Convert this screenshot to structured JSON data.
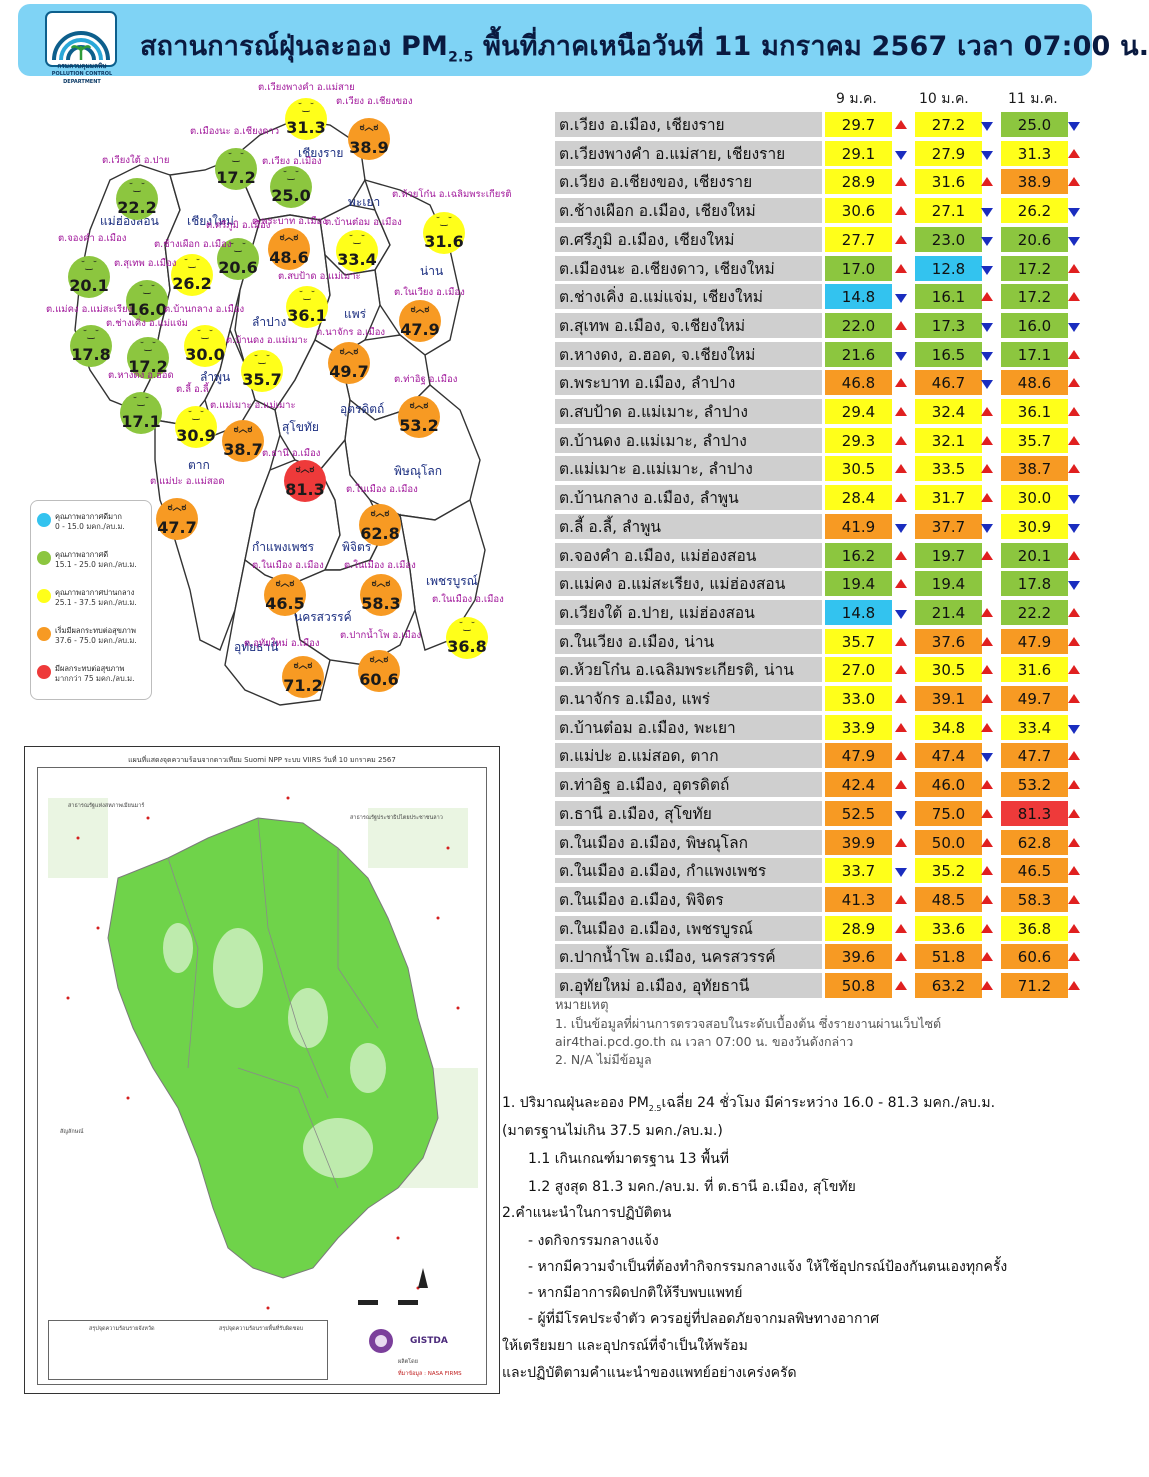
{
  "header": {
    "title_pre": "สถานการณ์ฝุ่นละออง PM",
    "title_sub": "2.5",
    "title_post": "พื้นที่ภาคเหนือวันที่ 11 มกราคม 2567 เวลา 07:00 น.",
    "logo_text": "กรมควบคุมมลพิษ",
    "logo_text_en": "POLLUTION CONTROL DEPARTMENT"
  },
  "colors": {
    "very_good": "#33c3ef",
    "good": "#8cc63f",
    "moderate": "#ffff1a",
    "unhealthy_sensitive": "#f79a23",
    "unhealthy": "#ee3a3a",
    "header_bg": "#7fd3f5",
    "arrow_up": "#e02020",
    "arrow_down": "#1a2dbf"
  },
  "legend": [
    {
      "title": "คุณภาพอากาศดีมาก",
      "range": "0 - 15.0 มคก./ลบ.ม.",
      "level": "vg"
    },
    {
      "title": "คุณภาพอากาศดี",
      "range": "15.1 - 25.0 มคก./ลบ.ม.",
      "level": "good"
    },
    {
      "title": "คุณภาพอากาศปานกลาง",
      "range": "25.1 - 37.5 มคก./ลบ.ม.",
      "level": "mod"
    },
    {
      "title": "เริ่มมีผลกระทบต่อสุขภาพ",
      "range": "37.6 - 75.0 มคก./ลบ.ม.",
      "level": "usg"
    },
    {
      "title": "มีผลกระทบต่อสุขภาพ",
      "range": "มากกว่า 75 มคก./ลบ.ม.",
      "level": "bad"
    }
  ],
  "map": {
    "provinces": [
      "เชียงราย",
      "พะเยา",
      "แม่ฮ่องสอน",
      "เชียงใหม่",
      "น่าน",
      "ลำปาง",
      "แพร่",
      "ลำพูน",
      "อุตรดิตถ์",
      "สุโขทัย",
      "ตาก",
      "พิษณุโลก",
      "กำแพงเพชร",
      "พิจิตร",
      "เพชรบูรณ์",
      "นครสวรรค์",
      "อุทัยธานี"
    ],
    "stations": [
      {
        "label": "ต.เวียงพางคำ อ.แม่สาย",
        "value": "31.3",
        "level": "mod"
      },
      {
        "label": "ต.เวียง อ.เชียงของ",
        "value": "38.9",
        "level": "usg"
      },
      {
        "label": "ต.เมืองนะ อ.เชียงดาว",
        "value": "17.2",
        "level": "good"
      },
      {
        "label": "ต.เวียงใต้ อ.ปาย",
        "value": "22.2",
        "level": "good"
      },
      {
        "label": "ต.เวียง อ.เมือง",
        "value": "25.0",
        "level": "good"
      },
      {
        "label": "ต.ห้วยโก๋น อ.เฉลิมพระเกียรติ",
        "value": "31.6",
        "level": "mod"
      },
      {
        "label": "ต.พระบาท อ.เมือง",
        "value": "48.6",
        "level": "usg"
      },
      {
        "label": "ต.บ้านต๋อม อ.เมือง",
        "value": "33.4",
        "level": "mod"
      },
      {
        "label": "ต.ศรีภูมิ อ.เมือง",
        "value": "20.6",
        "level": "good"
      },
      {
        "label": "ต.ช้างเผือก อ.เมือง",
        "value": "26.2",
        "level": "mod"
      },
      {
        "label": "ต.จองคำ อ.เมือง",
        "value": "20.1",
        "level": "good"
      },
      {
        "label": "ต.สุเทพ อ.เมือง",
        "value": "16.0",
        "level": "good"
      },
      {
        "label": "ต.สบป้าด อ.แม่เมาะ",
        "value": "36.1",
        "level": "mod"
      },
      {
        "label": "ต.ในเวียง อ.เมือง",
        "value": "47.9",
        "level": "usg"
      },
      {
        "label": "ต.แม่คง อ.แม่สะเรียง",
        "value": "17.8",
        "level": "good"
      },
      {
        "label": "ต.ช่างเคิ่ง อ.แม่แจ่ม",
        "value": "17.2",
        "level": "good"
      },
      {
        "label": "ต.บ้านกลาง อ.เมือง",
        "value": "30.0",
        "level": "mod"
      },
      {
        "label": "ต.นาจักร อ.เมือง",
        "value": "49.7",
        "level": "usg"
      },
      {
        "label": "ต.บ้านดง อ.แม่เมาะ",
        "value": "35.7",
        "level": "mod"
      },
      {
        "label": "ต.หางดง อ.ฮอด",
        "value": "17.1",
        "level": "good"
      },
      {
        "label": "ต.ลี้ อ.ลี้",
        "value": "30.9",
        "level": "mod"
      },
      {
        "label": "ต.แม่เมาะ อ.แม่เมาะ",
        "value": "38.7",
        "level": "usg"
      },
      {
        "label": "ต.ท่าอิฐ อ.เมือง",
        "value": "53.2",
        "level": "usg"
      },
      {
        "label": "ต.ธานี อ.เมือง",
        "value": "81.3",
        "level": "bad"
      },
      {
        "label": "ต.แม่ปะ อ.แม่สอด",
        "value": "47.7",
        "level": "usg"
      },
      {
        "label": "ต.ในเมือง อ.เมือง",
        "value": "62.8",
        "level": "usg"
      },
      {
        "label": "ต.ในเมือง อ.เมือง",
        "value": "46.5",
        "level": "usg"
      },
      {
        "label": "ต.ในเมือง อ.เมือง",
        "value": "58.3",
        "level": "usg"
      },
      {
        "label": "ต.ในเมือง อ.เมือง",
        "value": "36.8",
        "level": "mod"
      },
      {
        "label": "ต.อุทัยใหม่ อ.เมือง",
        "value": "71.2",
        "level": "usg"
      },
      {
        "label": "ต.ปากน้ำโพ อ.เมือง",
        "value": "60.6",
        "level": "usg"
      }
    ]
  },
  "satellite": {
    "title": "แผนที่แสดงจุดความร้อนจากดาวเทียม Suomi NPP ระบบ VIIRS วันที่ 10 มกราคม 2567",
    "left_country": "สาธารณรัฐแห่งสหภาพเมียนมาร์",
    "right_country": "สาธารณรัฐประชาธิปไตยประชาชนลาว",
    "legend_title": "สัญลักษณ์",
    "summary_left": "สรุปจุดความร้อนรายจังหวัด",
    "summary_right": "สรุปจุดความร้อนรายพื้นที่รับผิดชอบ",
    "source": "ที่มาข้อมูล : NASA FIRMS",
    "gistda": "GISTDA",
    "producer": "ผลิตโดย"
  },
  "table": {
    "days": [
      "9 ม.ค.",
      "10 ม.ค.",
      "11 ม.ค."
    ],
    "rows": [
      {
        "name": "ต.เวียง อ.เมือง, เชียงราย",
        "v": [
          "29.7",
          "27.2",
          "25.0"
        ],
        "l": [
          "mod",
          "mod",
          "good"
        ],
        "t": [
          "up",
          "down",
          "down"
        ]
      },
      {
        "name": "ต.เวียงพางคำ อ.แม่สาย, เชียงราย",
        "v": [
          "29.1",
          "27.9",
          "31.3"
        ],
        "l": [
          "mod",
          "mod",
          "mod"
        ],
        "t": [
          "down",
          "down",
          "up"
        ]
      },
      {
        "name": "ต.เวียง อ.เชียงของ, เชียงราย",
        "v": [
          "28.9",
          "31.6",
          "38.9"
        ],
        "l": [
          "mod",
          "mod",
          "usg"
        ],
        "t": [
          "up",
          "up",
          "up"
        ]
      },
      {
        "name": "ต.ช้างเผือก อ.เมือง, เชียงใหม่",
        "v": [
          "30.6",
          "27.1",
          "26.2"
        ],
        "l": [
          "mod",
          "mod",
          "mod"
        ],
        "t": [
          "up",
          "down",
          "down"
        ]
      },
      {
        "name": "ต.ศรีภูมิ อ.เมือง, เชียงใหม่",
        "v": [
          "27.7",
          "23.0",
          "20.6"
        ],
        "l": [
          "mod",
          "good",
          "good"
        ],
        "t": [
          "up",
          "down",
          "down"
        ]
      },
      {
        "name": "ต.เมืองนะ อ.เชียงดาว, เชียงใหม่",
        "v": [
          "17.0",
          "12.8",
          "17.2"
        ],
        "l": [
          "good",
          "vg",
          "good"
        ],
        "t": [
          "up",
          "down",
          "up"
        ]
      },
      {
        "name": "ต.ช่างเคิ่ง อ.แม่แจ่ม, เชียงใหม่",
        "v": [
          "14.8",
          "16.1",
          "17.2"
        ],
        "l": [
          "vg",
          "good",
          "good"
        ],
        "t": [
          "down",
          "up",
          "up"
        ]
      },
      {
        "name": "ต.สุเทพ  อ.เมือง, จ.เชียงใหม่",
        "v": [
          "22.0",
          "17.3",
          "16.0"
        ],
        "l": [
          "good",
          "good",
          "good"
        ],
        "t": [
          "up",
          "down",
          "down"
        ]
      },
      {
        "name": "ต.หางดง, อ.ฮอด, จ.เชียงใหม่",
        "v": [
          "21.6",
          "16.5",
          "17.1"
        ],
        "l": [
          "good",
          "good",
          "good"
        ],
        "t": [
          "down",
          "down",
          "up"
        ]
      },
      {
        "name": "ต.พระบาท อ.เมือง, ลำปาง",
        "v": [
          "46.8",
          "46.7",
          "48.6"
        ],
        "l": [
          "usg",
          "usg",
          "usg"
        ],
        "t": [
          "up",
          "down",
          "up"
        ]
      },
      {
        "name": "ต.สบป้าด อ.แม่เมาะ, ลำปาง",
        "v": [
          "29.4",
          "32.4",
          "36.1"
        ],
        "l": [
          "mod",
          "mod",
          "mod"
        ],
        "t": [
          "up",
          "up",
          "up"
        ]
      },
      {
        "name": "ต.บ้านดง อ.แม่เมาะ, ลำปาง",
        "v": [
          "29.3",
          "32.1",
          "35.7"
        ],
        "l": [
          "mod",
          "mod",
          "mod"
        ],
        "t": [
          "up",
          "up",
          "up"
        ]
      },
      {
        "name": "ต.แม่เมาะ อ.แม่เมาะ, ลำปาง",
        "v": [
          "30.5",
          "33.5",
          "38.7"
        ],
        "l": [
          "mod",
          "mod",
          "usg"
        ],
        "t": [
          "up",
          "up",
          "up"
        ]
      },
      {
        "name": "ต.บ้านกลาง อ.เมือง, ลำพูน",
        "v": [
          "28.4",
          "31.7",
          "30.0"
        ],
        "l": [
          "mod",
          "mod",
          "mod"
        ],
        "t": [
          "up",
          "up",
          "down"
        ]
      },
      {
        "name": "ต.ลี้ อ.ลี้, ลำพูน",
        "v": [
          "41.9",
          "37.7",
          "30.9"
        ],
        "l": [
          "usg",
          "usg",
          "mod"
        ],
        "t": [
          "down",
          "down",
          "down"
        ]
      },
      {
        "name": "ต.จองคำ อ.เมือง, แม่ฮ่องสอน",
        "v": [
          "16.2",
          "19.7",
          "20.1"
        ],
        "l": [
          "good",
          "good",
          "good"
        ],
        "t": [
          "up",
          "up",
          "up"
        ]
      },
      {
        "name": "ต.แม่คง อ.แม่สะเรียง, แม่ฮ่องสอน",
        "v": [
          "19.4",
          "19.4",
          "17.8"
        ],
        "l": [
          "good",
          "good",
          "good"
        ],
        "t": [
          "up",
          "",
          "down"
        ]
      },
      {
        "name": "ต.เวียงใต้ อ.ปาย, แม่ฮ่องสอน",
        "v": [
          "14.8",
          "21.4",
          "22.2"
        ],
        "l": [
          "vg",
          "good",
          "good"
        ],
        "t": [
          "down",
          "up",
          "up"
        ]
      },
      {
        "name": "ต.ในเวียง อ.เมือง, น่าน",
        "v": [
          "35.7",
          "37.6",
          "47.9"
        ],
        "l": [
          "mod",
          "usg",
          "usg"
        ],
        "t": [
          "up",
          "up",
          "up"
        ]
      },
      {
        "name": "ต.ห้วยโก๋น อ.เฉลิมพระเกียรติ, น่าน",
        "v": [
          "27.0",
          "30.5",
          "31.6"
        ],
        "l": [
          "mod",
          "mod",
          "mod"
        ],
        "t": [
          "up",
          "up",
          "up"
        ]
      },
      {
        "name": "ต.นาจักร อ.เมือง, แพร่",
        "v": [
          "33.0",
          "39.1",
          "49.7"
        ],
        "l": [
          "mod",
          "usg",
          "usg"
        ],
        "t": [
          "up",
          "up",
          "up"
        ]
      },
      {
        "name": "ต.บ้านต๋อม อ.เมือง, พะเยา",
        "v": [
          "33.9",
          "34.8",
          "33.4"
        ],
        "l": [
          "mod",
          "mod",
          "mod"
        ],
        "t": [
          "up",
          "up",
          "down"
        ]
      },
      {
        "name": "ต.แม่ปะ อ.แม่สอด, ตาก",
        "v": [
          "47.9",
          "47.4",
          "47.7"
        ],
        "l": [
          "usg",
          "usg",
          "usg"
        ],
        "t": [
          "up",
          "down",
          "up"
        ]
      },
      {
        "name": "ต.ท่าอิฐ อ.เมือง, อุตรดิตถ์",
        "v": [
          "42.4",
          "46.0",
          "53.2"
        ],
        "l": [
          "usg",
          "usg",
          "usg"
        ],
        "t": [
          "up",
          "up",
          "up"
        ]
      },
      {
        "name": "ต.ธานี อ.เมือง, สุโขทัย",
        "v": [
          "52.5",
          "75.0",
          "81.3"
        ],
        "l": [
          "usg",
          "usg",
          "bad"
        ],
        "t": [
          "down",
          "up",
          "up"
        ]
      },
      {
        "name": "ต.ในเมือง อ.เมือง, พิษณุโลก",
        "v": [
          "39.9",
          "50.0",
          "62.8"
        ],
        "l": [
          "usg",
          "usg",
          "usg"
        ],
        "t": [
          "up",
          "up",
          "up"
        ]
      },
      {
        "name": "ต.ในเมือง อ.เมือง, กำแพงเพชร",
        "v": [
          "33.7",
          "35.2",
          "46.5"
        ],
        "l": [
          "mod",
          "mod",
          "usg"
        ],
        "t": [
          "down",
          "up",
          "up"
        ]
      },
      {
        "name": "ต.ในเมือง อ.เมือง, พิจิตร",
        "v": [
          "41.3",
          "48.5",
          "58.3"
        ],
        "l": [
          "usg",
          "usg",
          "usg"
        ],
        "t": [
          "up",
          "up",
          "up"
        ]
      },
      {
        "name": "ต.ในเมือง อ.เมือง, เพชรบูรณ์",
        "v": [
          "28.9",
          "33.6",
          "36.8"
        ],
        "l": [
          "mod",
          "mod",
          "mod"
        ],
        "t": [
          "up",
          "up",
          "up"
        ]
      },
      {
        "name": "ต.ปากน้ำโพ อ.เมือง, นครสวรรค์",
        "v": [
          "39.6",
          "51.8",
          "60.6"
        ],
        "l": [
          "usg",
          "usg",
          "usg"
        ],
        "t": [
          "up",
          "up",
          "up"
        ]
      },
      {
        "name": "ต.อุทัยใหม่ อ.เมือง, อุทัยธานี",
        "v": [
          "50.8",
          "63.2",
          "71.2"
        ],
        "l": [
          "usg",
          "usg",
          "usg"
        ],
        "t": [
          "up",
          "up",
          "up"
        ]
      }
    ]
  },
  "notes": {
    "title": "หมายเหตุ",
    "line1": "1.  เป็นข้อมูลที่ผ่านการตรวจสอบในระดับเบื้องต้น  ซึ่งรายงานผ่านเว็บไซต์",
    "line2": "air4thai.pcd.go.th  ณ  เวลา 07:00  น.  ของวันดังกล่าว",
    "line3": "2.  N/A  ไม่มีข้อมูล"
  },
  "summary": {
    "l1_pre": "1. ปริมาณฝุ่นละออง PM",
    "l1_sub": "2.5",
    "l1_post": "เฉลี่ย 24 ชั่วโมง มีค่าระหว่าง 16.0 - 81.3 มคก./ลบ.ม.",
    "l2": "(มาตรฐานไม่เกิน 37.5 มคก./ลบ.ม.)",
    "l3": "1.1 เกินเกณฑ์มาตรฐาน 13 พื้นที่",
    "l4": "1.2 สูงสุด 81.3  มคก./ลบ.ม. ที่ ต.ธานี อ.เมือง, สุโขทัย",
    "l5": "2.คำแนะนำในการปฏิบัติตน",
    "l6": "-  งดกิจกรรมกลางแจ้ง",
    "l7": "-  หากมีความจำเป็นที่ต้องทำกิจกรรมกลางแจ้ง ให้ใช้อุปกรณ์ป้องกันตนเองทุกครั้ง",
    "l8": "-  หากมีอาการผิดปกติให้รีบพบแพทย์",
    "l9": "-  ผู้ที่มีโรคประจำตัว ควรอยู่ที่ปลอดภัยจากมลพิษทางอากาศ",
    "l10": "ให้เตรียมยา  และอุปกรณ์ที่จำเป็นให้พร้อม",
    "l11": "และปฏิบัติตามคำแนะนำของแพทย์อย่างเคร่งครัด"
  }
}
